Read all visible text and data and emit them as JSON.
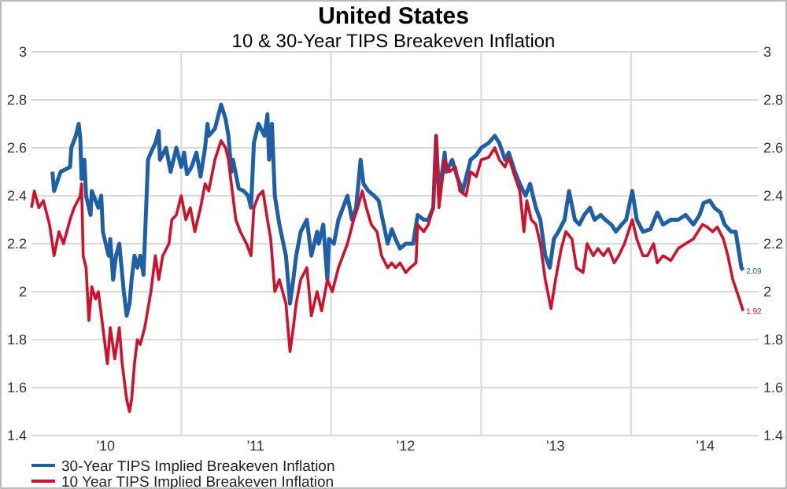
{
  "chart_data": {
    "type": "line",
    "title": "United States",
    "subtitle": "10 & 30-Year TIPS Breakeven Inflation",
    "xlim": [
      "2010-01-01",
      "2014-11-08"
    ],
    "ylim": [
      1.4,
      3
    ],
    "y2lim": [
      1.4,
      3
    ],
    "xticks": [
      {
        "value": "2010-07-01",
        "label": "'10"
      },
      {
        "value": "2011-01-01",
        "label": null
      },
      {
        "value": "2011-07-01",
        "label": "'11"
      },
      {
        "value": "2012-01-01",
        "label": null
      },
      {
        "value": "2012-07-01",
        "label": "'12"
      },
      {
        "value": "2013-01-01",
        "label": null
      },
      {
        "value": "2013-07-01",
        "label": "'13"
      },
      {
        "value": "2014-01-01",
        "label": null
      },
      {
        "value": "2014-07-01",
        "label": "'14"
      }
    ],
    "yticks": [
      1.4,
      1.6,
      1.8,
      2,
      2.2,
      2.4,
      2.6,
      2.8,
      3
    ],
    "y2ticks": [
      1.4,
      1.6,
      1.8,
      2,
      2.2,
      2.4,
      2.6,
      2.8,
      3
    ],
    "grid": true,
    "legend": "bottom left",
    "marker": "none",
    "line_style": "solid",
    "annotations": [
      {
        "text": "2.09",
        "x": "2014-10-01",
        "y": 2.09
      },
      {
        "text": "1.92",
        "x": "2014-10-01",
        "y": 1.92
      }
    ],
    "series": [
      {
        "name": "30-Year TIPS Implied Breakeven Inflation",
        "color": "#1f5fa6",
        "x": [
          "2010-02-21",
          "2010-02-25",
          "2010-03-13",
          "2010-04-05",
          "2010-04-08",
          "2010-04-19",
          "2010-04-26",
          "2010-04-30",
          "2010-05-03",
          "2010-05-10",
          "2010-05-14",
          "2010-05-25",
          "2010-05-28",
          "2010-06-13",
          "2010-06-20",
          "2010-06-24",
          "2010-07-08",
          "2010-07-12",
          "2010-07-19",
          "2010-07-26",
          "2010-08-03",
          "2010-08-14",
          "2010-08-21",
          "2010-08-28",
          "2010-09-02",
          "2010-09-09",
          "2010-09-16",
          "2010-09-23",
          "2010-10-01",
          "2010-10-04",
          "2010-10-12",
          "2010-10-19",
          "2010-10-30",
          "2010-11-07",
          "2010-11-10",
          "2010-11-25",
          "2010-12-06",
          "2010-12-13",
          "2010-12-20",
          "2011-01-01",
          "2011-01-08",
          "2011-01-15",
          "2011-01-26",
          "2011-02-07",
          "2011-02-17",
          "2011-02-28",
          "2011-03-06",
          "2011-03-09",
          "2011-03-24",
          "2011-04-08",
          "2011-04-19",
          "2011-04-26",
          "2011-05-03",
          "2011-05-07",
          "2011-05-21",
          "2011-06-02",
          "2011-06-13",
          "2011-06-20",
          "2011-06-27",
          "2011-07-08",
          "2011-07-23",
          "2011-07-30",
          "2011-08-03",
          "2011-08-10",
          "2011-08-17",
          "2011-08-28",
          "2011-09-13",
          "2011-09-23",
          "2011-10-01",
          "2011-10-08",
          "2011-10-19",
          "2011-11-03",
          "2011-11-14",
          "2011-11-28",
          "2011-12-02",
          "2011-12-13",
          "2011-12-23",
          "2011-12-27",
          "2012-01-08",
          "2012-01-19",
          "2012-01-30",
          "2012-02-10",
          "2012-02-21",
          "2012-03-02",
          "2012-03-13",
          "2012-03-20",
          "2012-04-01",
          "2012-04-15",
          "2012-04-26",
          "2012-05-18",
          "2012-05-28",
          "2012-06-06",
          "2012-06-17",
          "2012-07-01",
          "2012-07-19",
          "2012-07-30",
          "2012-08-14",
          "2012-08-25",
          "2012-09-06",
          "2012-09-13",
          "2012-09-20",
          "2012-10-04",
          "2012-10-08",
          "2012-10-22",
          "2012-11-03",
          "2012-11-17",
          "2012-12-06",
          "2012-12-20",
          "2013-01-01",
          "2013-01-19",
          "2013-02-03",
          "2013-02-14",
          "2013-02-28",
          "2013-03-09",
          "2013-03-24",
          "2013-04-05",
          "2013-04-19",
          "2013-04-30",
          "2013-05-14",
          "2013-05-25",
          "2013-06-06",
          "2013-06-17",
          "2013-06-27",
          "2013-07-08",
          "2013-07-23",
          "2013-08-03",
          "2013-08-17",
          "2013-08-28",
          "2013-09-09",
          "2013-09-23",
          "2013-10-04",
          "2013-10-19",
          "2013-10-30",
          "2013-11-14",
          "2013-11-25",
          "2013-12-09",
          "2013-12-20",
          "2014-01-04",
          "2014-01-15",
          "2014-01-30",
          "2014-02-17",
          "2014-03-06",
          "2014-03-20",
          "2014-04-08",
          "2014-04-26",
          "2014-05-14",
          "2014-06-02",
          "2014-06-17",
          "2014-06-27",
          "2014-07-12",
          "2014-07-23",
          "2014-08-07",
          "2014-08-17",
          "2014-09-02",
          "2014-09-13",
          "2014-09-27",
          "2014-10-01"
        ],
        "values": [
          2.5,
          2.42,
          2.5,
          2.52,
          2.6,
          2.65,
          2.7,
          2.64,
          2.47,
          2.55,
          2.4,
          2.32,
          2.42,
          2.35,
          2.4,
          2.25,
          2.15,
          2.22,
          2.05,
          2.15,
          2.2,
          2.0,
          1.9,
          1.95,
          2.05,
          2.15,
          2.1,
          2.15,
          2.07,
          2.2,
          2.55,
          2.58,
          2.62,
          2.67,
          2.55,
          2.6,
          2.5,
          2.55,
          2.6,
          2.52,
          2.58,
          2.49,
          2.52,
          2.58,
          2.48,
          2.6,
          2.7,
          2.65,
          2.68,
          2.78,
          2.72,
          2.65,
          2.5,
          2.55,
          2.43,
          2.42,
          2.4,
          2.35,
          2.62,
          2.7,
          2.65,
          2.74,
          2.55,
          2.7,
          2.4,
          2.28,
          2.15,
          1.95,
          2.05,
          2.15,
          2.25,
          2.3,
          2.15,
          2.25,
          2.2,
          2.28,
          2.05,
          2.22,
          2.2,
          2.3,
          2.35,
          2.4,
          2.3,
          2.35,
          2.55,
          2.45,
          2.42,
          2.4,
          2.38,
          2.2,
          2.26,
          2.22,
          2.18,
          2.2,
          2.2,
          2.32,
          2.3,
          2.3,
          2.35,
          2.65,
          2.4,
          2.58,
          2.5,
          2.55,
          2.48,
          2.42,
          2.55,
          2.57,
          2.6,
          2.62,
          2.65,
          2.62,
          2.55,
          2.58,
          2.5,
          2.45,
          2.4,
          2.45,
          2.35,
          2.3,
          2.15,
          2.1,
          2.22,
          2.25,
          2.3,
          2.42,
          2.3,
          2.28,
          2.32,
          2.35,
          2.3,
          2.32,
          2.3,
          2.28,
          2.25,
          2.28,
          2.3,
          2.42,
          2.3,
          2.25,
          2.26,
          2.33,
          2.28,
          2.3,
          2.3,
          2.32,
          2.28,
          2.32,
          2.37,
          2.38,
          2.35,
          2.33,
          2.28,
          2.25,
          2.25,
          2.1,
          2.09
        ]
      },
      {
        "name": "10 Year TIPS Implied Breakeven Inflation",
        "color": "#d0112b",
        "x": [
          "2010-01-01",
          "2010-01-08",
          "2010-01-19",
          "2010-01-30",
          "2010-02-14",
          "2010-02-25",
          "2010-03-09",
          "2010-03-20",
          "2010-04-05",
          "2010-04-15",
          "2010-04-30",
          "2010-05-03",
          "2010-05-07",
          "2010-05-14",
          "2010-05-21",
          "2010-05-28",
          "2010-06-06",
          "2010-06-13",
          "2010-06-24",
          "2010-07-05",
          "2010-07-12",
          "2010-07-23",
          "2010-08-03",
          "2010-08-10",
          "2010-08-21",
          "2010-08-28",
          "2010-09-02",
          "2010-09-09",
          "2010-09-16",
          "2010-09-23",
          "2010-10-04",
          "2010-10-19",
          "2010-10-30",
          "2010-11-07",
          "2010-11-17",
          "2010-12-02",
          "2010-12-09",
          "2010-12-20",
          "2011-01-01",
          "2011-01-12",
          "2011-01-23",
          "2011-02-03",
          "2011-02-17",
          "2011-02-28",
          "2011-03-09",
          "2011-03-24",
          "2011-04-08",
          "2011-04-19",
          "2011-04-26",
          "2011-05-03",
          "2011-05-14",
          "2011-05-25",
          "2011-06-09",
          "2011-06-20",
          "2011-06-27",
          "2011-07-08",
          "2011-07-19",
          "2011-07-30",
          "2011-08-07",
          "2011-08-17",
          "2011-08-28",
          "2011-09-13",
          "2011-09-23",
          "2011-10-01",
          "2011-10-08",
          "2011-10-19",
          "2011-11-03",
          "2011-11-14",
          "2011-11-28",
          "2011-12-09",
          "2011-12-23",
          "2012-01-04",
          "2012-01-19",
          "2012-01-30",
          "2012-02-10",
          "2012-02-25",
          "2012-03-06",
          "2012-03-17",
          "2012-03-27",
          "2012-04-08",
          "2012-04-22",
          "2012-05-03",
          "2012-05-18",
          "2012-05-28",
          "2012-06-06",
          "2012-06-17",
          "2012-07-01",
          "2012-07-12",
          "2012-07-26",
          "2012-07-30",
          "2012-08-14",
          "2012-08-25",
          "2012-09-06",
          "2012-09-13",
          "2012-09-20",
          "2012-10-04",
          "2012-10-15",
          "2012-10-30",
          "2012-11-10",
          "2012-11-25",
          "2012-12-06",
          "2012-12-20",
          "2013-01-01",
          "2013-01-19",
          "2013-02-03",
          "2013-02-14",
          "2013-02-28",
          "2013-03-09",
          "2013-03-24",
          "2013-04-05",
          "2013-04-15",
          "2013-04-22",
          "2013-05-03",
          "2013-05-14",
          "2013-05-25",
          "2013-06-06",
          "2013-06-20",
          "2013-07-01",
          "2013-07-15",
          "2013-07-26",
          "2013-08-10",
          "2013-08-21",
          "2013-09-06",
          "2013-09-16",
          "2013-10-01",
          "2013-10-12",
          "2013-10-26",
          "2013-11-07",
          "2013-11-21",
          "2013-12-02",
          "2013-12-16",
          "2014-01-04",
          "2014-01-15",
          "2014-01-30",
          "2014-02-10",
          "2014-02-25",
          "2014-03-06",
          "2014-03-20",
          "2014-04-08",
          "2014-04-26",
          "2014-05-14",
          "2014-06-02",
          "2014-06-24",
          "2014-07-05",
          "2014-07-19",
          "2014-07-30",
          "2014-08-14",
          "2014-08-25",
          "2014-09-06",
          "2014-09-20",
          "2014-10-01"
        ],
        "values": [
          2.35,
          2.42,
          2.35,
          2.38,
          2.28,
          2.15,
          2.25,
          2.2,
          2.3,
          2.35,
          2.4,
          2.45,
          2.15,
          2.1,
          1.88,
          2.02,
          1.97,
          2.0,
          1.85,
          1.7,
          1.85,
          1.72,
          1.85,
          1.7,
          1.55,
          1.5,
          1.55,
          1.7,
          1.8,
          1.78,
          1.85,
          2.0,
          2.15,
          2.05,
          2.15,
          2.2,
          2.3,
          2.32,
          2.4,
          2.3,
          2.35,
          2.25,
          2.35,
          2.45,
          2.42,
          2.55,
          2.63,
          2.6,
          2.55,
          2.45,
          2.3,
          2.25,
          2.2,
          2.15,
          2.35,
          2.4,
          2.42,
          2.3,
          2.22,
          2.0,
          2.05,
          1.95,
          1.75,
          1.85,
          1.95,
          2.05,
          2.1,
          1.9,
          2.0,
          1.92,
          2.05,
          2.0,
          2.1,
          2.15,
          2.2,
          2.3,
          2.35,
          2.42,
          2.35,
          2.28,
          2.25,
          2.15,
          2.1,
          2.12,
          2.1,
          2.12,
          2.08,
          2.1,
          2.12,
          2.28,
          2.25,
          2.28,
          2.35,
          2.65,
          2.35,
          2.55,
          2.5,
          2.52,
          2.42,
          2.4,
          2.5,
          2.48,
          2.55,
          2.56,
          2.6,
          2.55,
          2.52,
          2.56,
          2.48,
          2.42,
          2.25,
          2.38,
          2.3,
          2.28,
          2.2,
          2.05,
          1.93,
          2.05,
          2.18,
          2.25,
          2.22,
          2.1,
          2.08,
          2.2,
          2.15,
          2.18,
          2.15,
          2.18,
          2.12,
          2.15,
          2.2,
          2.3,
          2.22,
          2.15,
          2.15,
          2.2,
          2.12,
          2.15,
          2.13,
          2.18,
          2.2,
          2.22,
          2.28,
          2.27,
          2.25,
          2.27,
          2.22,
          2.15,
          2.05,
          1.98,
          1.92
        ]
      }
    ]
  }
}
